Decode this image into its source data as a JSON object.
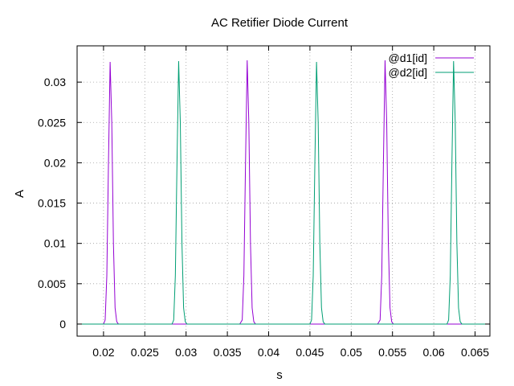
{
  "chart_data": {
    "type": "line",
    "title": "AC Retifier Diode Current",
    "xlabel": "s",
    "ylabel": "A",
    "xlim": [
      0.0168,
      0.0668
    ],
    "ylim": [
      -0.0015,
      0.0345
    ],
    "x_ticks": [
      0.02,
      0.025,
      0.03,
      0.035,
      0.04,
      0.045,
      0.05,
      0.055,
      0.06,
      0.065
    ],
    "x_tick_labels": [
      "0.02",
      "0.025",
      "0.03",
      "0.035",
      "0.04",
      "0.045",
      "0.05",
      "0.055",
      "0.06",
      "0.065"
    ],
    "y_ticks": [
      0,
      0.005,
      0.01,
      0.015,
      0.02,
      0.025,
      0.03
    ],
    "y_tick_labels": [
      "0",
      "0.005",
      "0.01",
      "0.015",
      "0.02",
      "0.025",
      "0.03"
    ],
    "grid": true,
    "legend_position": "top-right",
    "series": [
      {
        "name": "@d1[id]",
        "color": "#9400d3",
        "x": [
          0.0168,
          0.02,
          0.0202,
          0.0204,
          0.0206,
          0.0208,
          0.021,
          0.0212,
          0.0214,
          0.0216,
          0.0218,
          0.022,
          0.0285,
          0.0295,
          0.0365,
          0.0368,
          0.037,
          0.0372,
          0.0374,
          0.0376,
          0.0378,
          0.038,
          0.0382,
          0.0384,
          0.045,
          0.046,
          0.0532,
          0.0535,
          0.0537,
          0.0539,
          0.0541,
          0.0543,
          0.0545,
          0.0547,
          0.0549,
          0.0551,
          0.062,
          0.0668
        ],
        "y": [
          0,
          0,
          0.0005,
          0.006,
          0.02,
          0.0325,
          0.025,
          0.01,
          0.002,
          0.0003,
          0,
          0,
          0,
          0,
          0,
          0.0005,
          0.006,
          0.02,
          0.0327,
          0.025,
          0.01,
          0.002,
          0.0003,
          0,
          0,
          0,
          0,
          0.0005,
          0.006,
          0.02,
          0.0327,
          0.025,
          0.01,
          0.002,
          0.0003,
          0,
          0,
          0
        ]
      },
      {
        "name": "@d2[id]",
        "color": "#009e73",
        "x": [
          0.0168,
          0.02,
          0.021,
          0.0283,
          0.0285,
          0.0287,
          0.0289,
          0.0291,
          0.0293,
          0.0295,
          0.0297,
          0.0299,
          0.0301,
          0.037,
          0.038,
          0.045,
          0.0452,
          0.0454,
          0.0456,
          0.0458,
          0.046,
          0.0462,
          0.0464,
          0.0466,
          0.0468,
          0.0535,
          0.0545,
          0.0616,
          0.0618,
          0.062,
          0.0622,
          0.0624,
          0.0626,
          0.0628,
          0.063,
          0.0632,
          0.0634,
          0.0668
        ],
        "y": [
          0,
          0,
          0,
          0,
          0.0005,
          0.006,
          0.02,
          0.0326,
          0.025,
          0.01,
          0.002,
          0.0003,
          0,
          0,
          0,
          0,
          0.0005,
          0.006,
          0.02,
          0.0325,
          0.025,
          0.01,
          0.002,
          0.0003,
          0,
          0,
          0,
          0,
          0.0005,
          0.006,
          0.02,
          0.0326,
          0.025,
          0.01,
          0.002,
          0.0003,
          0,
          0
        ]
      }
    ]
  }
}
